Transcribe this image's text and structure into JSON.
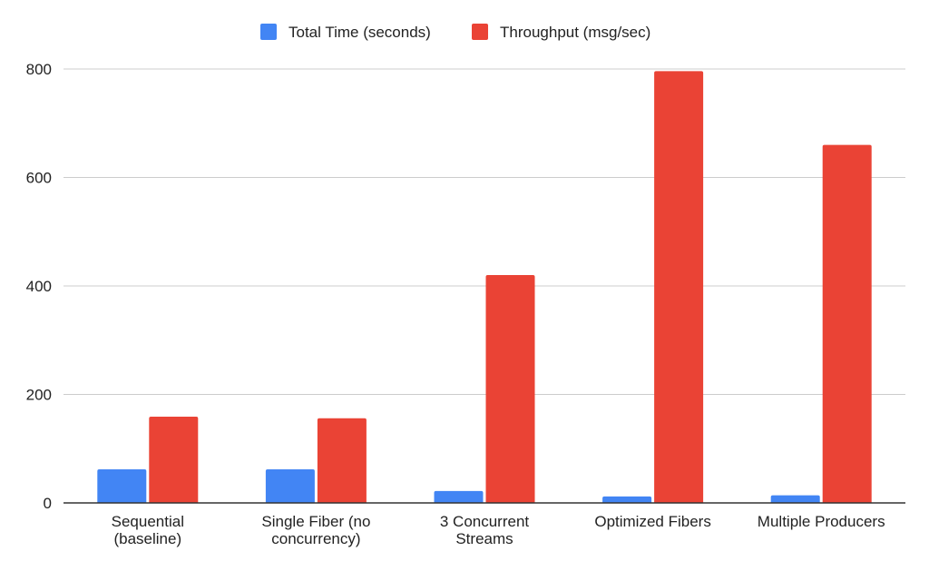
{
  "chart_data": {
    "type": "bar",
    "categories": [
      [
        "Sequential",
        "(baseline)"
      ],
      [
        "Single Fiber (no",
        "concurrency)"
      ],
      [
        "3 Concurrent",
        "Streams"
      ],
      [
        "Optimized Fibers"
      ],
      [
        "Multiple Producers"
      ]
    ],
    "series": [
      {
        "name": "Total Time (seconds)",
        "color": "#4285f4",
        "values": [
          62,
          62,
          22,
          12,
          14
        ]
      },
      {
        "name": "Throughput (msg/sec)",
        "color": "#ea4335",
        "values": [
          159,
          156,
          420,
          796,
          660
        ]
      }
    ],
    "ylim": [
      0,
      800
    ],
    "yticks": [
      0,
      200,
      400,
      600,
      800
    ],
    "grid": true,
    "legend_position": "top"
  }
}
